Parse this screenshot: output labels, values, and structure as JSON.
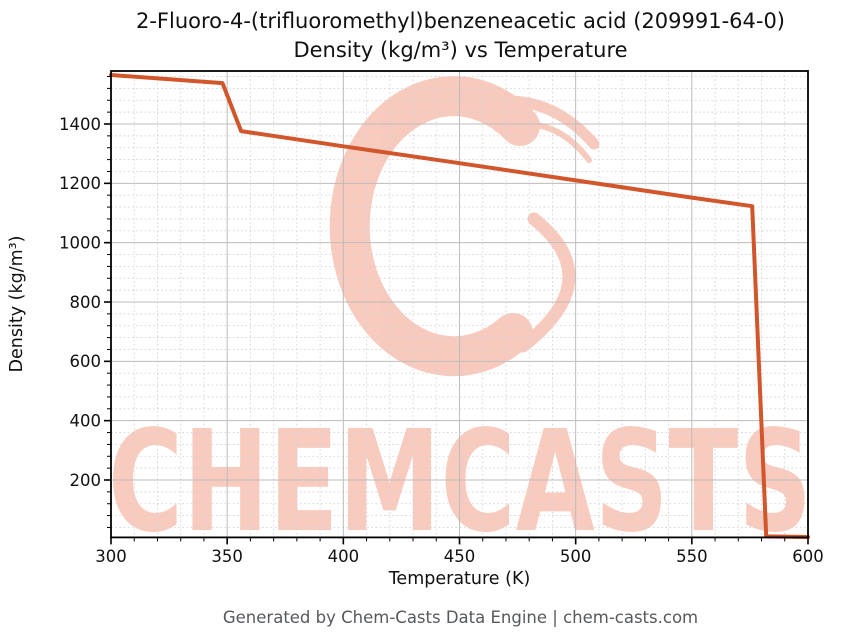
{
  "page": {
    "title_line1": "2-Fluoro-4-(trifluoromethyl)benzeneacetic acid (209991-64-0)",
    "title_line2": "Density (kg/m³) vs Temperature",
    "footer": "Generated by Chem-Casts Data Engine | chem-casts.com"
  },
  "watermark": {
    "text": "CHEMCASTS",
    "logo": "chem-casts-brush-circle-logo",
    "color": "#ee8264"
  },
  "chart_data": {
    "type": "line",
    "title": "2-Fluoro-4-(trifluoromethyl)benzeneacetic acid (209991-64-0) — Density (kg/m³) vs Temperature",
    "xlabel": "Temperature (K)",
    "ylabel": "Density (kg/m³)",
    "xlim": [
      300,
      600
    ],
    "ylim": [
      0,
      1580
    ],
    "x_ticks": [
      300,
      350,
      400,
      450,
      500,
      550,
      600
    ],
    "y_ticks": [
      200,
      400,
      600,
      800,
      1000,
      1200,
      1400
    ],
    "x_minor_step": 10,
    "y_minor_step": 40,
    "grid": "major solid + minor dotted",
    "legend": "none",
    "line_color": "#d2562c",
    "line_width": 4,
    "series": [
      {
        "name": "Density (kg/m³)",
        "points": [
          [
            300,
            1565
          ],
          [
            348,
            1538
          ],
          [
            356,
            1376
          ],
          [
            400,
            1325
          ],
          [
            450,
            1268
          ],
          [
            500,
            1210
          ],
          [
            550,
            1152
          ],
          [
            576,
            1123
          ],
          [
            582,
            10
          ],
          [
            600,
            8
          ]
        ]
      }
    ]
  }
}
